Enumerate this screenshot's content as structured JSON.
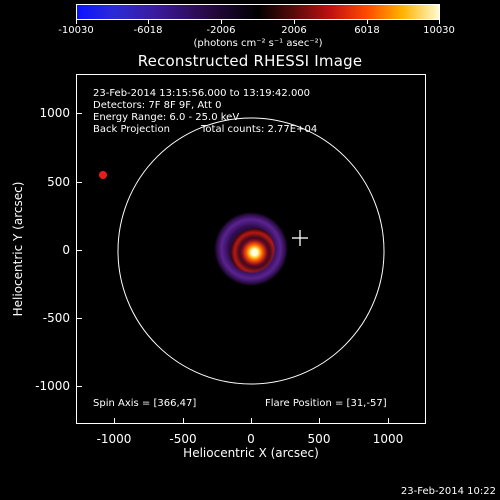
{
  "colorbar": {
    "ticks": [
      "-10030",
      "-6018",
      "-2006",
      "2006",
      "6018",
      "10030"
    ],
    "unit_label": "(photons cm⁻² s⁻¹ asec⁻²)"
  },
  "title": "Reconstructed RHESSI Image",
  "info": {
    "time_range": "23-Feb-2014 13:15:56.000 to 13:19:42.000",
    "detectors": "Detectors: 7F 8F 9F, Att 0",
    "energy": "Energy Range: 6.0 - 25.0 keV",
    "method": "Back Projection",
    "counts": "Total counts: 2.77E+04",
    "spin_axis": "Spin Axis = [366,47]",
    "flare_position": "Flare Position = [31,-57]"
  },
  "axes": {
    "x_ticks": [
      "-1000",
      "-500",
      "0",
      "500",
      "1000"
    ],
    "y_ticks": [
      "1000",
      "500",
      "0",
      "-500",
      "-1000"
    ],
    "xlabel": "Heliocentric X (arcsec)",
    "ylabel": "Heliocentric Y (arcsec)"
  },
  "timestamp": "23-Feb-2014 10:22"
}
